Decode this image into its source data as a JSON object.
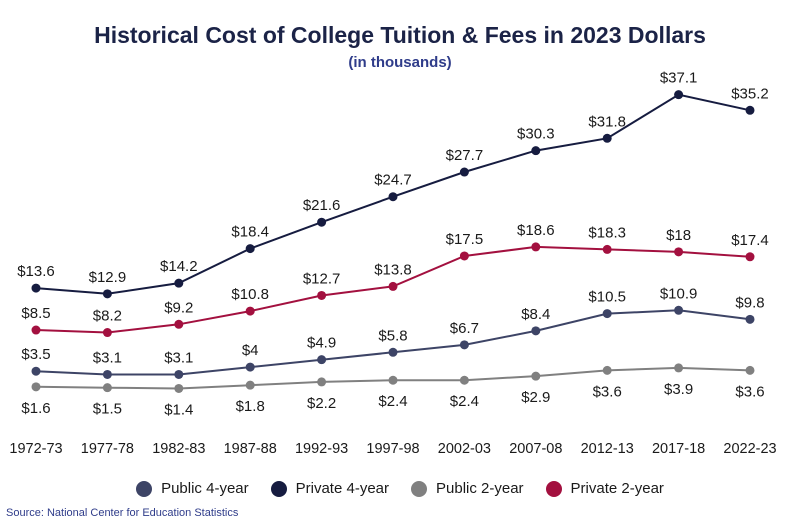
{
  "header": {
    "title": "Historical Cost of College Tuition & Fees in 2023 Dollars",
    "subtitle": "(in thousands)"
  },
  "source": "Source: National Center for Education Statistics",
  "chart_data": {
    "type": "line",
    "title": "Historical Cost of College Tuition & Fees in 2023 Dollars",
    "subtitle": "(in thousands)",
    "categories": [
      "1972-73",
      "1977-78",
      "1982-83",
      "1987-88",
      "1992-93",
      "1997-98",
      "2002-03",
      "2007-08",
      "2012-13",
      "2017-18",
      "2022-23"
    ],
    "value_prefix": "$",
    "grid": false,
    "legend": "bottom",
    "series": [
      {
        "name": "Public 4-year",
        "key": "public-4-year",
        "color": "#3d4466",
        "values": [
          3.5,
          3.1,
          3.1,
          4,
          4.9,
          5.8,
          6.7,
          8.4,
          10.5,
          10.9,
          9.8
        ],
        "labels": [
          "$3.5",
          "$3.1",
          "$3.1",
          "$4",
          "$4.9",
          "$5.8",
          "$6.7",
          "$8.4",
          "$10.5",
          "$10.9",
          "$9.8"
        ]
      },
      {
        "name": "Private 4-year",
        "key": "private-4-year",
        "color": "#161c40",
        "values": [
          13.6,
          12.9,
          14.2,
          18.4,
          21.6,
          24.7,
          27.7,
          30.3,
          31.8,
          37.1,
          35.2
        ],
        "labels": [
          "$13.6",
          "$12.9",
          "$14.2",
          "$18.4",
          "$21.6",
          "$24.7",
          "$27.7",
          "$30.3",
          "$31.8",
          "$37.1",
          "$35.2"
        ]
      },
      {
        "name": "Public 2-year",
        "key": "public-2-year",
        "color": "#808080",
        "values": [
          1.6,
          1.5,
          1.4,
          1.8,
          2.2,
          2.4,
          2.4,
          2.9,
          3.6,
          3.9,
          3.6
        ],
        "labels": [
          "$1.6",
          "$1.5",
          "$1.4",
          "$1.8",
          "$2.2",
          "$2.4",
          "$2.4",
          "$2.9",
          "$3.6",
          "$3.9",
          "$3.6"
        ]
      },
      {
        "name": "Private 2-year",
        "key": "private-2-year",
        "color": "#a3103f",
        "values": [
          8.5,
          8.2,
          9.2,
          10.8,
          12.7,
          13.8,
          17.5,
          18.6,
          18.3,
          18,
          17.4
        ],
        "labels": [
          "$8.5",
          "$8.2",
          "$9.2",
          "$10.8",
          "$12.7",
          "$13.8",
          "$17.5",
          "$18.6",
          "$18.3",
          "$18",
          "$17.4"
        ]
      }
    ]
  }
}
